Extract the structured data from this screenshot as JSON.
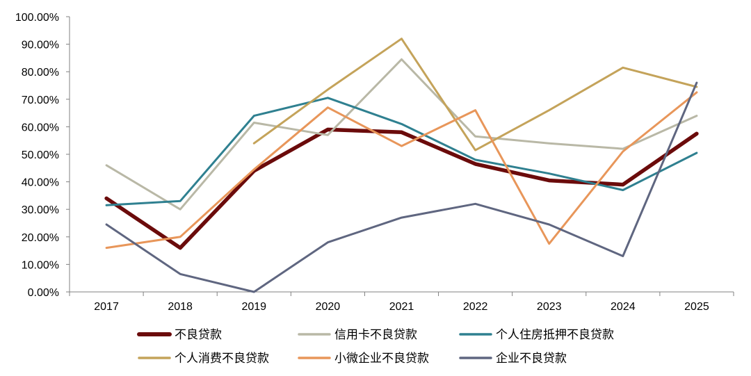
{
  "chart_data": {
    "type": "line",
    "title": "",
    "xlabel": "",
    "ylabel": "",
    "x": [
      "2017",
      "2018",
      "2019",
      "2020",
      "2021",
      "2022",
      "2023",
      "2024",
      "2025"
    ],
    "ylim": [
      0,
      100
    ],
    "yticks": [
      "0.00%",
      "10.00%",
      "20.00%",
      "30.00%",
      "40.00%",
      "50.00%",
      "60.00%",
      "70.00%",
      "80.00%",
      "90.00%",
      "100.00%"
    ],
    "grid": false,
    "legend_position": "bottom",
    "series": [
      {
        "name": "不良贷款",
        "color": "#6b0b0b",
        "width": "thick",
        "values": [
          34.0,
          16.0,
          44.0,
          59.0,
          58.0,
          46.5,
          40.5,
          39.0,
          57.5
        ]
      },
      {
        "name": "信用卡不良贷款",
        "color": "#b9b8a6",
        "width": "normal",
        "values": [
          46.0,
          30.0,
          61.5,
          57.0,
          84.5,
          56.5,
          54.0,
          52.0,
          64.0
        ]
      },
      {
        "name": "个人住房抵押不良贷款",
        "color": "#2f8090",
        "width": "normal",
        "values": [
          31.5,
          33.0,
          64.0,
          70.5,
          61.0,
          48.0,
          43.0,
          37.0,
          50.5
        ]
      },
      {
        "name": "个人消费不良贷款",
        "color": "#c4a35a",
        "width": "normal",
        "values": [
          null,
          null,
          54.0,
          73.5,
          92.0,
          51.5,
          66.0,
          81.5,
          74.5
        ]
      },
      {
        "name": "小微企业不良贷款",
        "color": "#e8965a",
        "width": "normal",
        "values": [
          16.0,
          20.0,
          44.5,
          67.0,
          53.0,
          66.0,
          17.5,
          51.0,
          72.5
        ]
      },
      {
        "name": "企业不良贷款",
        "color": "#5f6680",
        "width": "normal",
        "values": [
          24.5,
          6.5,
          0.0,
          18.0,
          27.0,
          32.0,
          24.5,
          13.0,
          76.0
        ]
      }
    ]
  }
}
